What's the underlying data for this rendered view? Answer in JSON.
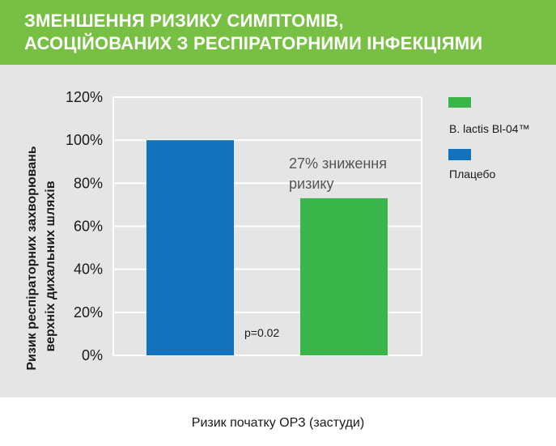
{
  "header": {
    "title": "ЗМЕНШЕННЯ РИЗИКУ СИМПТОМІВ,\nАСОЦІЙОВАНИХ З РЕСПІРАТОРНИМИ ІНФЕКЦІЯМИ"
  },
  "colors": {
    "header_bg": "#78c043",
    "panel_bg": "#e5e5e5",
    "blue": "#1372be",
    "green": "#3ab54a"
  },
  "chart_data": {
    "type": "bar",
    "categories": [
      "Плацебо",
      "B. lactis Bl-04™"
    ],
    "values": [
      100,
      73
    ],
    "ylim": [
      0,
      120
    ],
    "yticks": [
      0,
      20,
      40,
      60,
      80,
      100,
      120
    ],
    "ytick_labels": [
      "0%",
      "20%",
      "40%",
      "60%",
      "80%",
      "100%",
      "120%"
    ],
    "ylabel_line1": "Ризик респіраторних захворювань",
    "ylabel_line2": "верхніх дихальних шляхів",
    "xlabel": "Ризик початку ОРЗ (застуди)",
    "legend": [
      {
        "label": "B. lactis Bl-04™",
        "color": "#3ab54a"
      },
      {
        "label": "Плацебо",
        "color": "#1372be"
      }
    ],
    "legend_position": "right",
    "annotations": {
      "reduction_line1": "27% зниження",
      "reduction_line2": "ризику",
      "pvalue": "p=0.02"
    },
    "grid": true
  }
}
